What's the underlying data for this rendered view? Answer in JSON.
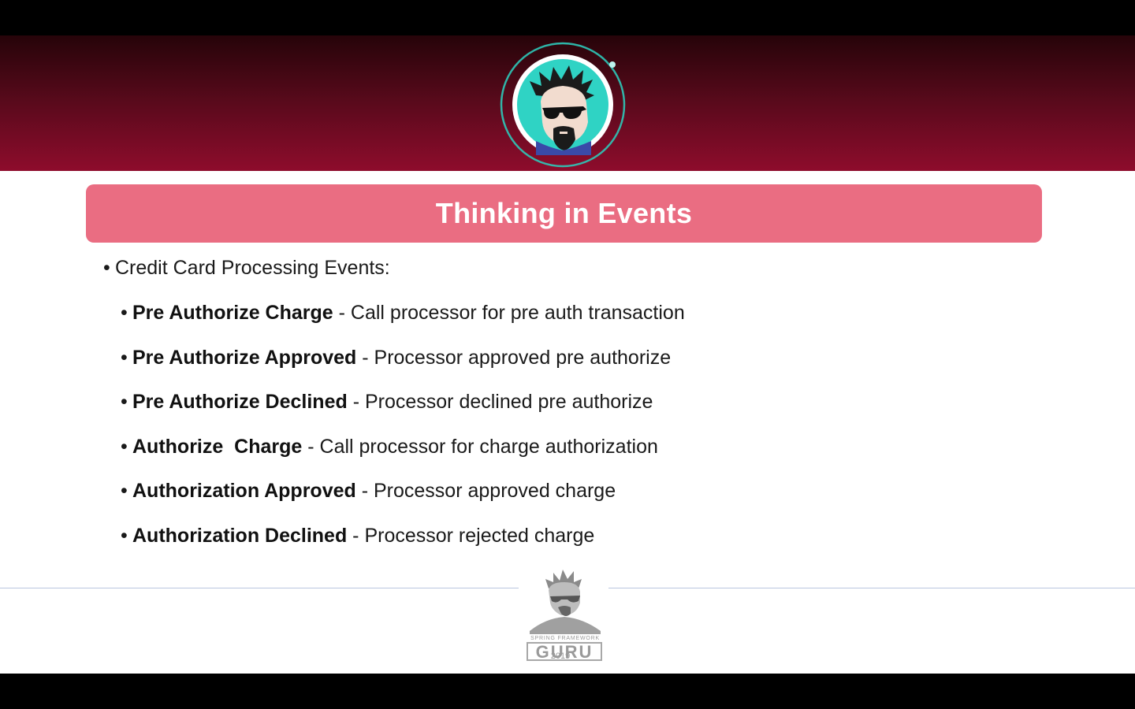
{
  "slide": {
    "title": "Thinking in Events",
    "main_bullet": "Credit Card Processing Events:",
    "events": [
      {
        "name": "Pre Authorize Charge",
        "description": " - Call processor for pre auth transaction"
      },
      {
        "name": "Pre Authorize Approved",
        "description": " - Processor approved pre authorize"
      },
      {
        "name": "Pre Authorize Declined",
        "description": " - Processor declined pre authorize"
      },
      {
        "name": "Authorize  Charge",
        "description": " - Call processor for charge authorization"
      },
      {
        "name": "Authorization Approved",
        "description": " - Processor approved charge"
      },
      {
        "name": "Authorization Declined",
        "description": " - Processor rejected charge"
      }
    ]
  },
  "footer": {
    "logo_small_text": "SPRING FRAMEWORK",
    "logo_text": "GURU",
    "year": "2019"
  },
  "colors": {
    "header_dark": "#260409",
    "header_light": "#8e0c2c",
    "title_bar": "#ea6d82",
    "avatar_ring": "#2ec8b8"
  }
}
